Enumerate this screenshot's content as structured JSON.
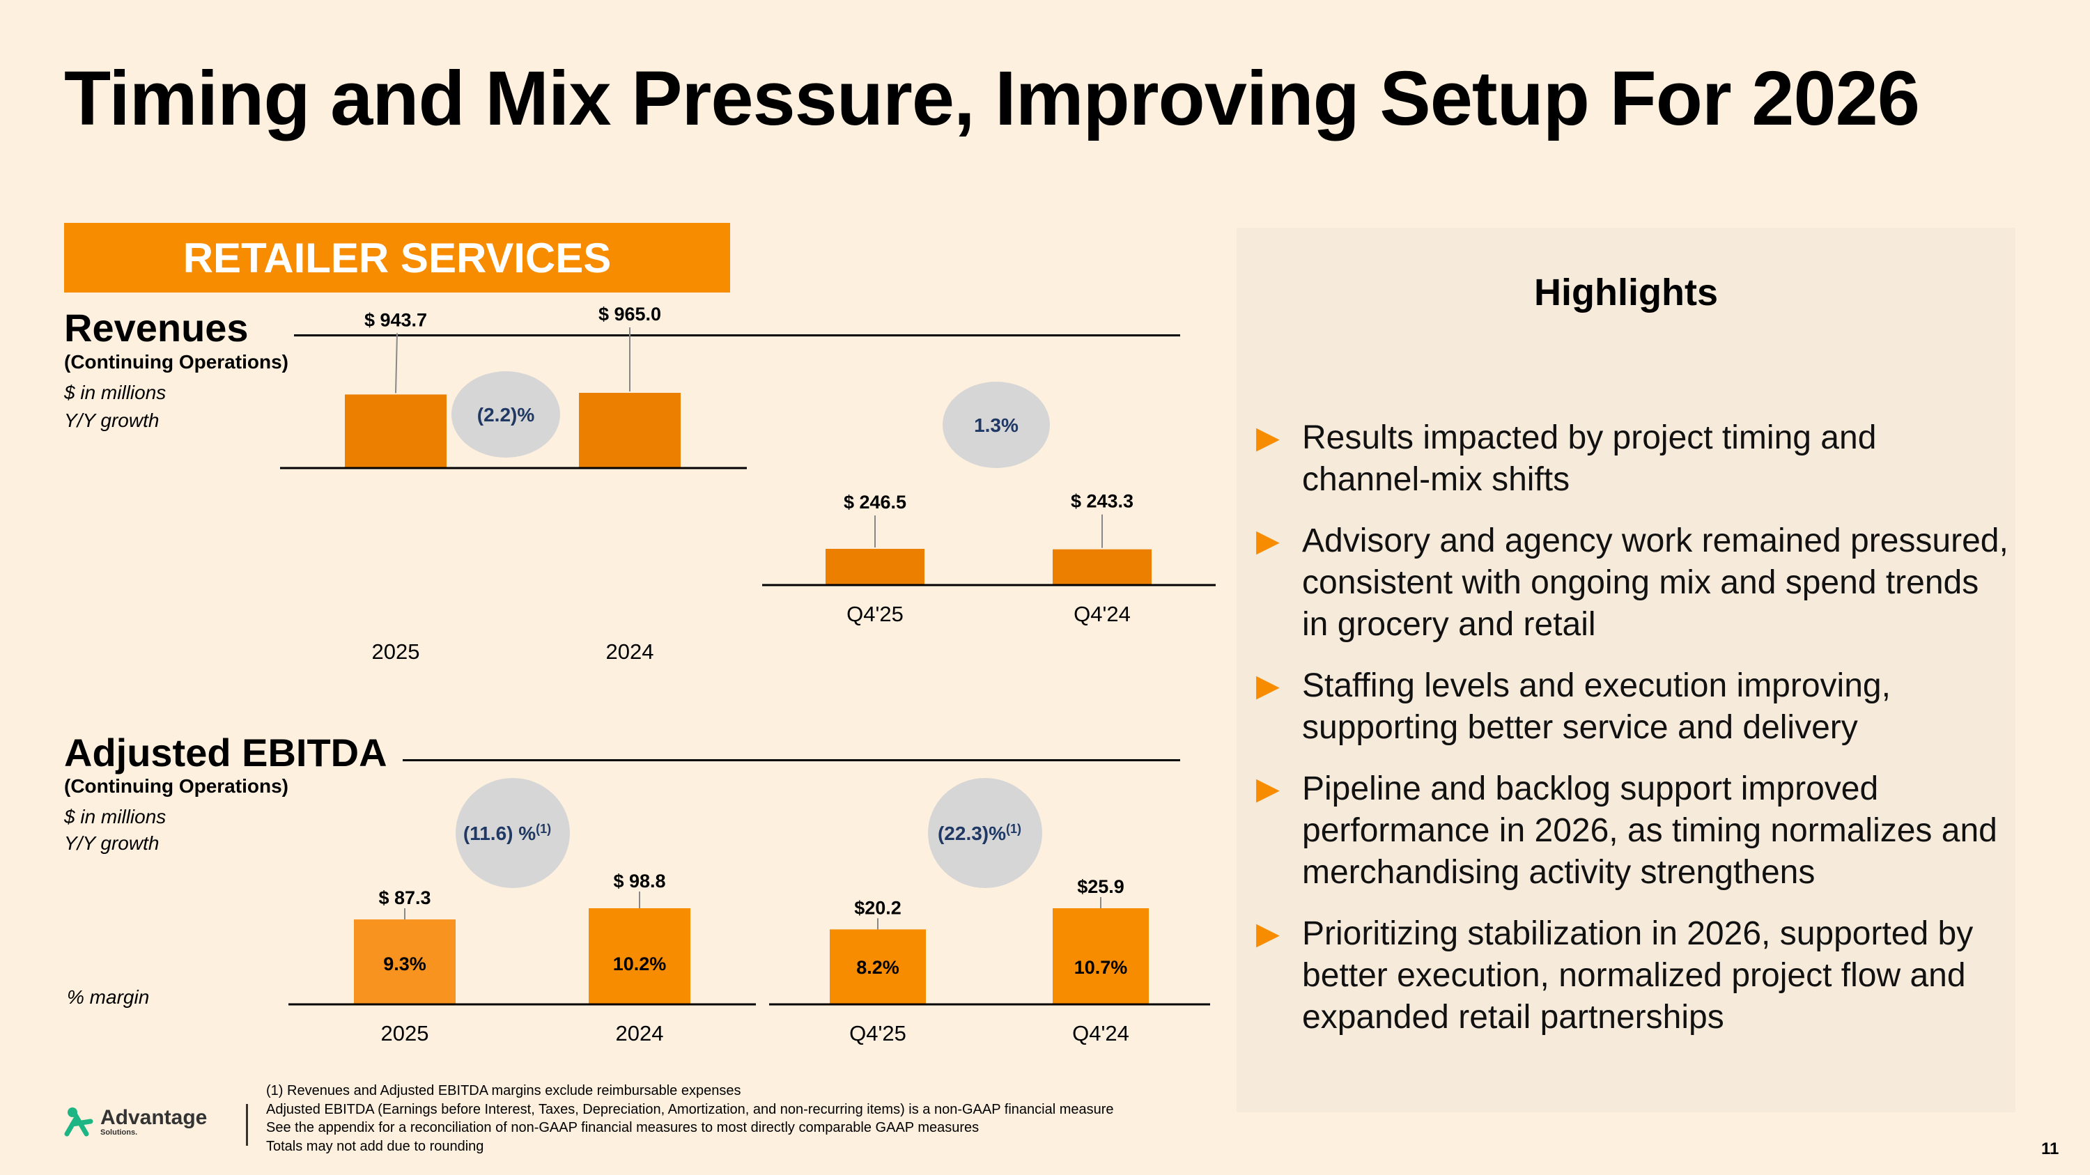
{
  "title": "Timing and Mix Pressure, Improving Setup For 2026",
  "section_banner": "RETAILER SERVICES",
  "revenues": {
    "heading": "Revenues",
    "subheading": "(Continuing Operations)",
    "note_units": "$ in millions",
    "note_growth": "Y/Y growth"
  },
  "ebitda": {
    "heading": "Adjusted EBITDA",
    "subheading": "(Continuing Operations)",
    "note_units": "$ in millions",
    "note_growth": "Y/Y growth",
    "note_margin": "% margin"
  },
  "colors": {
    "accent": "#F88C00",
    "bar_dark": "#EC7F00",
    "bar_light": "#F7931E",
    "growth_bubble": "#D6D6D6",
    "growth_text": "#1F3864"
  },
  "chart_data": [
    {
      "type": "bar",
      "title": "Revenues (Continuing Operations) - Full Year",
      "categories": [
        "2025",
        "2024"
      ],
      "values": [
        943.7,
        965.0
      ],
      "value_labels": [
        "$ 943.7",
        "$ 965.0"
      ],
      "growth": "(2.2)%",
      "ylim": [
        0,
        1000
      ]
    },
    {
      "type": "bar",
      "title": "Revenues (Continuing Operations) - Quarter",
      "categories": [
        "Q4'25",
        "Q4'24"
      ],
      "values": [
        246.5,
        243.3
      ],
      "value_labels": [
        "$ 246.5",
        "$ 243.3"
      ],
      "growth": "1.3%",
      "ylim": [
        0,
        250
      ]
    },
    {
      "type": "bar",
      "title": "Adjusted EBITDA (Continuing Operations) - Full Year",
      "categories": [
        "2025",
        "2024"
      ],
      "values": [
        87.3,
        98.8
      ],
      "value_labels": [
        "$ 87.3",
        "$ 98.8"
      ],
      "margins": [
        "9.3%",
        "10.2%"
      ],
      "growth": "(11.6) %",
      "growth_sup": "(1)",
      "ylim": [
        0,
        100
      ]
    },
    {
      "type": "bar",
      "title": "Adjusted EBITDA (Continuing Operations) - Quarter",
      "categories": [
        "Q4'25",
        "Q4'24"
      ],
      "values": [
        20.2,
        25.9
      ],
      "value_labels": [
        "$20.2",
        "$25.9"
      ],
      "margins": [
        "8.2%",
        "10.7%"
      ],
      "growth": "(22.3)%",
      "growth_sup": "(1)",
      "ylim": [
        0,
        26
      ]
    }
  ],
  "highlights": {
    "title": "Highlights",
    "items": [
      "Results impacted by project timing and channel-mix shifts",
      "Advisory and agency work remained pressured, consistent with ongoing mix and spend trends in grocery and retail",
      "Staffing levels and execution improving, supporting better service and delivery",
      "Pipeline and backlog support improved performance in 2026, as timing normalizes and merchandising activity strengthens",
      "Prioritizing stabilization in 2026, supported by better execution, normalized project flow and expanded retail partnerships"
    ]
  },
  "footnotes": [
    "(1) Revenues and Adjusted EBITDA margins exclude reimbursable expenses",
    "Adjusted EBITDA (Earnings before Interest, Taxes, Depreciation, Amortization, and non-recurring items) is a non-GAAP financial measure",
    "See the appendix for a reconciliation of non-GAAP financial measures to most directly comparable GAAP measures",
    "Totals may not add due to rounding"
  ],
  "logo": {
    "name": "Advantage",
    "sub": "Solutions."
  },
  "page_number": "11"
}
